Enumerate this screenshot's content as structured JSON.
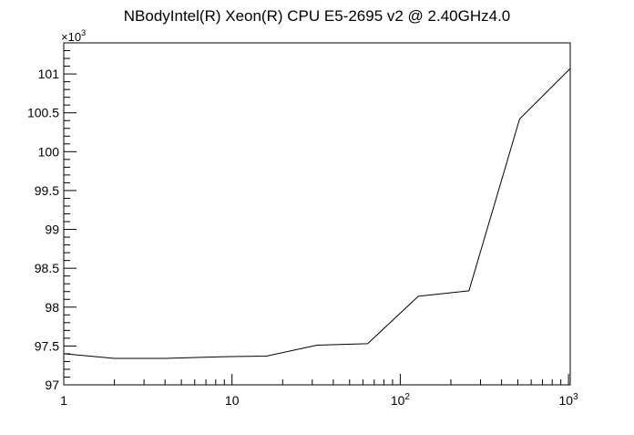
{
  "chart_data": {
    "type": "line",
    "title": "NBodyIntel(R) Xeon(R) CPU E5-2695 v2 @ 2.40GHz4.0",
    "xlabel": "",
    "ylabel": "",
    "x_scale": "log",
    "xlim": [
      1,
      1024
    ],
    "ylim": [
      97000,
      101400
    ],
    "y_multiplier_label": "×10",
    "y_multiplier_exponent": "3",
    "x_ticks": [
      {
        "value": 1,
        "base": "1",
        "exp": ""
      },
      {
        "value": 10,
        "base": "10",
        "exp": ""
      },
      {
        "value": 100,
        "base": "10",
        "exp": "2"
      },
      {
        "value": 1000,
        "base": "10",
        "exp": "3"
      }
    ],
    "y_ticks": [
      {
        "value": 97000,
        "label": "97"
      },
      {
        "value": 97500,
        "label": "97.5"
      },
      {
        "value": 98000,
        "label": "98"
      },
      {
        "value": 98500,
        "label": "98.5"
      },
      {
        "value": 99000,
        "label": "99"
      },
      {
        "value": 99500,
        "label": "99.5"
      },
      {
        "value": 100000,
        "label": "100"
      },
      {
        "value": 100500,
        "label": "100.5"
      },
      {
        "value": 101000,
        "label": "101"
      }
    ],
    "grid": false,
    "legend": "none",
    "series": [
      {
        "color": "#000000",
        "x": [
          1,
          2,
          4,
          8,
          16,
          32,
          64,
          128,
          256,
          512,
          1024
        ],
        "y": [
          97400,
          97340,
          97340,
          97360,
          97370,
          97510,
          97530,
          98140,
          98210,
          100420,
          101070
        ]
      }
    ]
  }
}
